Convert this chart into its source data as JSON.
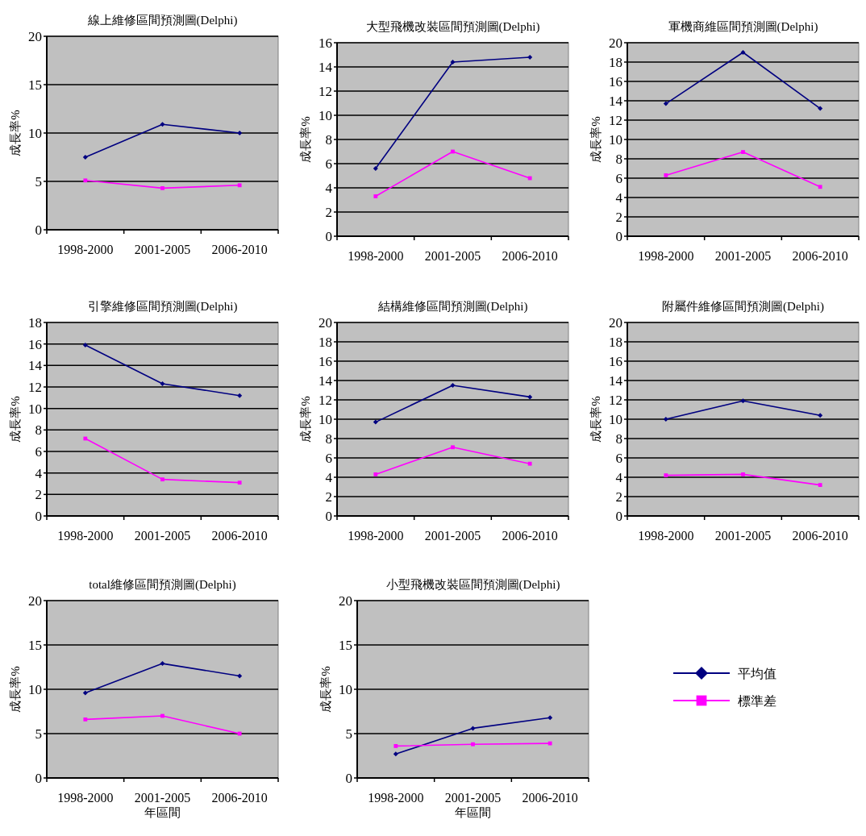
{
  "chart_data": [
    {
      "type": "line",
      "title": "線上維修區間預測圖(Delphi)",
      "ylabel": "成長率%",
      "categories": [
        "1998-2000",
        "2001-2005",
        "2006-2010"
      ],
      "ylim": [
        0,
        20
      ],
      "yticks": [
        0,
        5,
        10,
        15,
        20
      ],
      "grid": "y",
      "series": [
        {
          "color": "#000080",
          "marker": "diamond",
          "values": [
            7.5,
            10.9,
            10.0
          ]
        },
        {
          "color": "#ff00ff",
          "marker": "square",
          "values": [
            5.1,
            4.3,
            4.6
          ]
        }
      ]
    },
    {
      "type": "line",
      "title": "大型飛機改裝區間預測圖(Delphi)",
      "ylabel": "成長率%",
      "categories": [
        "1998-2000",
        "2001-2005",
        "2006-2010"
      ],
      "ylim": [
        0,
        16
      ],
      "yticks": [
        0,
        2,
        4,
        6,
        8,
        10,
        12,
        14,
        16
      ],
      "grid": "y",
      "series": [
        {
          "color": "#000080",
          "marker": "diamond",
          "values": [
            5.6,
            14.4,
            14.8
          ]
        },
        {
          "color": "#ff00ff",
          "marker": "square",
          "values": [
            3.3,
            7.0,
            4.8
          ]
        }
      ]
    },
    {
      "type": "line",
      "title": "軍機商維區間預測圖(Delphi)",
      "ylabel": "成長率%",
      "categories": [
        "1998-2000",
        "2001-2005",
        "2006-2010"
      ],
      "ylim": [
        0,
        20
      ],
      "yticks": [
        0,
        2,
        4,
        6,
        8,
        10,
        12,
        14,
        16,
        18,
        20
      ],
      "grid": "y",
      "series": [
        {
          "color": "#000080",
          "marker": "diamond",
          "values": [
            13.7,
            19.0,
            13.2
          ]
        },
        {
          "color": "#ff00ff",
          "marker": "square",
          "values": [
            6.3,
            8.7,
            5.1
          ]
        }
      ]
    },
    {
      "type": "line",
      "title": "引擎維修區間預測圖(Delphi)",
      "ylabel": "成長率%",
      "categories": [
        "1998-2000",
        "2001-2005",
        "2006-2010"
      ],
      "ylim": [
        0,
        18
      ],
      "yticks": [
        0,
        2,
        4,
        6,
        8,
        10,
        12,
        14,
        16,
        18
      ],
      "grid": "y",
      "series": [
        {
          "color": "#000080",
          "marker": "diamond",
          "values": [
            15.9,
            12.3,
            11.2
          ]
        },
        {
          "color": "#ff00ff",
          "marker": "square",
          "values": [
            7.2,
            3.4,
            3.1
          ]
        }
      ]
    },
    {
      "type": "line",
      "title": "結構維修區間預測圖(Delphi)",
      "ylabel": "成長率%",
      "categories": [
        "1998-2000",
        "2001-2005",
        "2006-2010"
      ],
      "ylim": [
        0,
        20
      ],
      "yticks": [
        0,
        2,
        4,
        6,
        8,
        10,
        12,
        14,
        16,
        18,
        20
      ],
      "grid": "y",
      "series": [
        {
          "color": "#000080",
          "marker": "diamond",
          "values": [
            9.7,
            13.5,
            12.3
          ]
        },
        {
          "color": "#ff00ff",
          "marker": "square",
          "values": [
            4.3,
            7.1,
            5.4
          ]
        }
      ]
    },
    {
      "type": "line",
      "title": "附屬件維修區間預測圖(Delphi)",
      "ylabel": "成長率%",
      "categories": [
        "1998-2000",
        "2001-2005",
        "2006-2010"
      ],
      "ylim": [
        0,
        20
      ],
      "yticks": [
        0,
        2,
        4,
        6,
        8,
        10,
        12,
        14,
        16,
        18,
        20
      ],
      "grid": "y",
      "series": [
        {
          "color": "#000080",
          "marker": "diamond",
          "values": [
            10.0,
            11.9,
            10.4
          ]
        },
        {
          "color": "#ff00ff",
          "marker": "square",
          "values": [
            4.2,
            4.3,
            3.2
          ]
        }
      ]
    },
    {
      "type": "line",
      "title": "total維修區間預測圖(Delphi)",
      "xlabel": "年區間",
      "ylabel": "成長率%",
      "categories": [
        "1998-2000",
        "2001-2005",
        "2006-2010"
      ],
      "ylim": [
        0,
        20
      ],
      "yticks": [
        0,
        5,
        10,
        15,
        20
      ],
      "grid": "y",
      "series": [
        {
          "color": "#000080",
          "marker": "diamond",
          "values": [
            9.6,
            12.9,
            11.5
          ]
        },
        {
          "color": "#ff00ff",
          "marker": "square",
          "values": [
            6.6,
            7.0,
            5.0
          ]
        }
      ]
    },
    {
      "type": "line",
      "title": "小型飛機改裝區間預測圖(Delphi)",
      "xlabel": "年區間",
      "ylabel": "成長率%",
      "categories": [
        "1998-2000",
        "2001-2005",
        "2006-2010"
      ],
      "ylim": [
        0,
        20
      ],
      "yticks": [
        0,
        5,
        10,
        15,
        20
      ],
      "grid": "y",
      "legend": "right",
      "series": [
        {
          "name": "平均值",
          "color": "#000080",
          "marker": "diamond",
          "values": [
            2.7,
            5.6,
            6.8
          ]
        },
        {
          "name": "標準差",
          "color": "#ff00ff",
          "marker": "square",
          "values": [
            3.6,
            3.8,
            3.9
          ]
        }
      ]
    }
  ]
}
